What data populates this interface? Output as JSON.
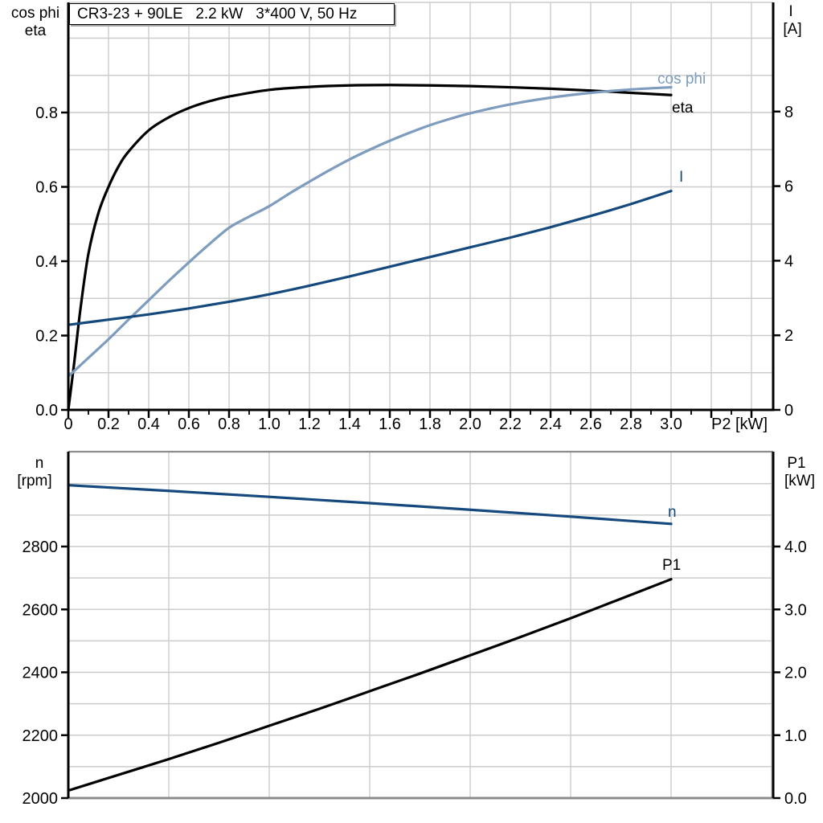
{
  "title_box": {
    "text": "CR3-23 + 90LE   2.2 kW   3*400 V, 50 Hz"
  },
  "colors": {
    "black": "#000000",
    "dark_blue": "#15497d",
    "light_blue": "#7d9cbe",
    "grid": "#cccccc",
    "frame": "#8c8c8c",
    "background": "#ffffff",
    "text": "#000000"
  },
  "chart_data": [
    {
      "type": "line",
      "position": "top",
      "x_axis": {
        "label": "P2 [kW]",
        "min": 0,
        "max": 3.5,
        "tick_values": [
          0,
          0.2,
          0.4,
          0.6,
          0.8,
          1.0,
          1.2,
          1.4,
          1.6,
          1.8,
          2.0,
          2.2,
          2.4,
          2.6,
          2.8,
          3.0
        ],
        "tick_labels": [
          "0",
          "0.2",
          "0.4",
          "0.6",
          "0.8",
          "1.0",
          "1.2",
          "1.4",
          "1.6",
          "1.8",
          "2.0",
          "2.2",
          "2.4",
          "2.6",
          "2.8",
          "3.0"
        ],
        "minor_tick_step": 0.1,
        "grid_step": 0.2,
        "grid": true
      },
      "left_axis": {
        "title_lines": [
          "cos phi",
          "eta"
        ],
        "min": 0.0,
        "max": 1.1,
        "tick_values": [
          0.0,
          0.2,
          0.4,
          0.6,
          0.8
        ],
        "tick_labels": [
          "0.0",
          "0.2",
          "0.4",
          "0.6",
          "0.8"
        ],
        "minor_grid_step": 0.1
      },
      "right_axis": {
        "title_lines": [
          "I",
          "[A]"
        ],
        "min": 0,
        "max": 10.8,
        "tick_values": [
          0,
          2,
          4,
          6,
          8
        ],
        "tick_labels": [
          "0",
          "2",
          "4",
          "6",
          "8"
        ]
      },
      "series": [
        {
          "name": "eta",
          "label": "eta",
          "color_key": "black",
          "axis": "left",
          "x": [
            0,
            0.03,
            0.06,
            0.1,
            0.15,
            0.2,
            0.25,
            0.3,
            0.4,
            0.5,
            0.6,
            0.7,
            0.8,
            1.0,
            1.2,
            1.4,
            1.6,
            1.8,
            2.0,
            2.2,
            2.4,
            2.6,
            2.8,
            3.0
          ],
          "y": [
            0,
            0.13,
            0.27,
            0.42,
            0.53,
            0.6,
            0.655,
            0.695,
            0.752,
            0.787,
            0.812,
            0.83,
            0.843,
            0.861,
            0.869,
            0.873,
            0.874,
            0.873,
            0.871,
            0.868,
            0.864,
            0.859,
            0.853,
            0.847
          ]
        },
        {
          "name": "cos_phi",
          "label": "cos phi",
          "color_key": "light_blue",
          "axis": "left",
          "x": [
            0,
            0.1,
            0.2,
            0.3,
            0.4,
            0.5,
            0.6,
            0.7,
            0.8,
            0.9,
            1.0,
            1.1,
            1.2,
            1.3,
            1.4,
            1.5,
            1.6,
            1.7,
            1.8,
            1.9,
            2.0,
            2.2,
            2.4,
            2.6,
            2.8,
            3.0
          ],
          "y": [
            0.09,
            0.14,
            0.19,
            0.243,
            0.295,
            0.347,
            0.397,
            0.445,
            0.49,
            0.52,
            0.548,
            0.582,
            0.614,
            0.645,
            0.674,
            0.7,
            0.724,
            0.746,
            0.766,
            0.783,
            0.798,
            0.822,
            0.84,
            0.853,
            0.862,
            0.868
          ]
        },
        {
          "name": "I",
          "label": "I",
          "color_key": "dark_blue",
          "axis": "right",
          "x": [
            0,
            0.2,
            0.4,
            0.6,
            0.8,
            1.0,
            1.2,
            1.4,
            1.6,
            1.8,
            2.0,
            2.2,
            2.4,
            2.6,
            2.8,
            3.0
          ],
          "y": [
            2.28,
            2.42,
            2.56,
            2.72,
            2.9,
            3.1,
            3.33,
            3.58,
            3.84,
            4.1,
            4.36,
            4.62,
            4.9,
            5.2,
            5.52,
            5.87
          ]
        }
      ]
    },
    {
      "type": "line",
      "position": "bottom",
      "x_axis": {
        "label": "",
        "min": 0,
        "max": 3.5,
        "tick_values": [],
        "tick_labels": [],
        "grid_step": 0.5,
        "grid": true
      },
      "left_axis": {
        "title_lines": [
          "n",
          "[rpm]"
        ],
        "min": 2000,
        "max": 3100,
        "tick_values": [
          2000,
          2200,
          2400,
          2600,
          2800
        ],
        "tick_labels": [
          "2000",
          "2200",
          "2400",
          "2600",
          "2800"
        ],
        "minor_grid_step": 100
      },
      "right_axis": {
        "title_lines": [
          "P1",
          "[kW]"
        ],
        "min": 0.0,
        "max": 5.5,
        "tick_values": [
          0,
          1,
          2,
          3,
          4
        ],
        "tick_labels": [
          "0.0",
          "1.0",
          "2.0",
          "3.0",
          "4.0"
        ]
      },
      "series": [
        {
          "name": "n",
          "label": "n",
          "color_key": "dark_blue",
          "axis": "left",
          "x": [
            0,
            0.5,
            1.0,
            1.5,
            2.0,
            2.5,
            3.0
          ],
          "y": [
            2995,
            2977,
            2958,
            2938,
            2917,
            2895,
            2872
          ]
        },
        {
          "name": "P1",
          "label": "P1",
          "color_key": "black",
          "axis": "right",
          "x": [
            0,
            0.25,
            0.5,
            0.75,
            1.0,
            1.25,
            1.5,
            1.75,
            2.0,
            2.25,
            2.5,
            2.75,
            3.0
          ],
          "y": [
            0.12,
            0.37,
            0.62,
            0.88,
            1.15,
            1.42,
            1.7,
            1.98,
            2.27,
            2.56,
            2.86,
            3.17,
            3.48
          ]
        }
      ]
    }
  ]
}
